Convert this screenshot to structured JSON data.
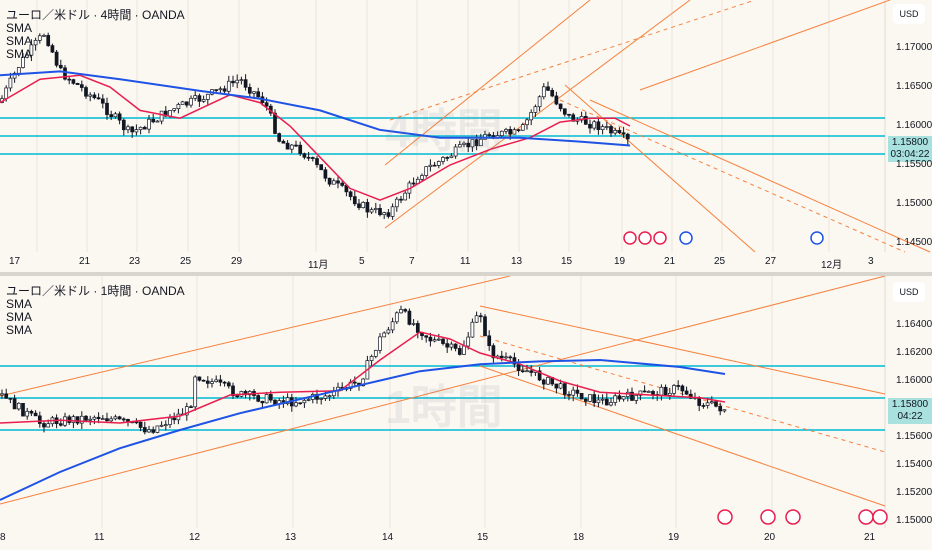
{
  "top": {
    "title": "ユーロ／米ドル · 4時間 · OANDA",
    "indicators": [
      "SMA",
      "SMA",
      "SMA"
    ],
    "watermark": "4時間",
    "currency": "USD",
    "price_ticks": [
      "1.17000",
      "1.16500",
      "1.16000",
      "1.15500",
      "1.15000",
      "1.14500"
    ],
    "last_price": "1.15800",
    "countdown": "03:04:22",
    "time_ticks": [
      "17",
      "21",
      "23",
      "25",
      "29",
      "11月",
      "5",
      "7",
      "11",
      "13",
      "15",
      "19",
      "21",
      "25",
      "27",
      "12月",
      "3"
    ]
  },
  "bottom": {
    "title": "ユーロ／米ドル · 1時間 · OANDA",
    "indicators": [
      "SMA",
      "SMA",
      "SMA"
    ],
    "watermark": "1時間",
    "currency": "USD",
    "price_ticks": [
      "1.16400",
      "1.16200",
      "1.16000",
      "1.15600",
      "1.15400",
      "1.15200",
      "1.15000"
    ],
    "last_price": "1.15800",
    "countdown": "04:22",
    "time_ticks": [
      "8",
      "11",
      "12",
      "13",
      "14",
      "15",
      "18",
      "19",
      "20",
      "21"
    ]
  },
  "colors": {
    "bg": "#fbf7f1",
    "up": "#ffffff",
    "down": "#131722",
    "sma_fast": "#e91e4f",
    "sma_slow": "#1e53e5",
    "levels": "#00bcd4",
    "channel": "#f7813d"
  }
}
